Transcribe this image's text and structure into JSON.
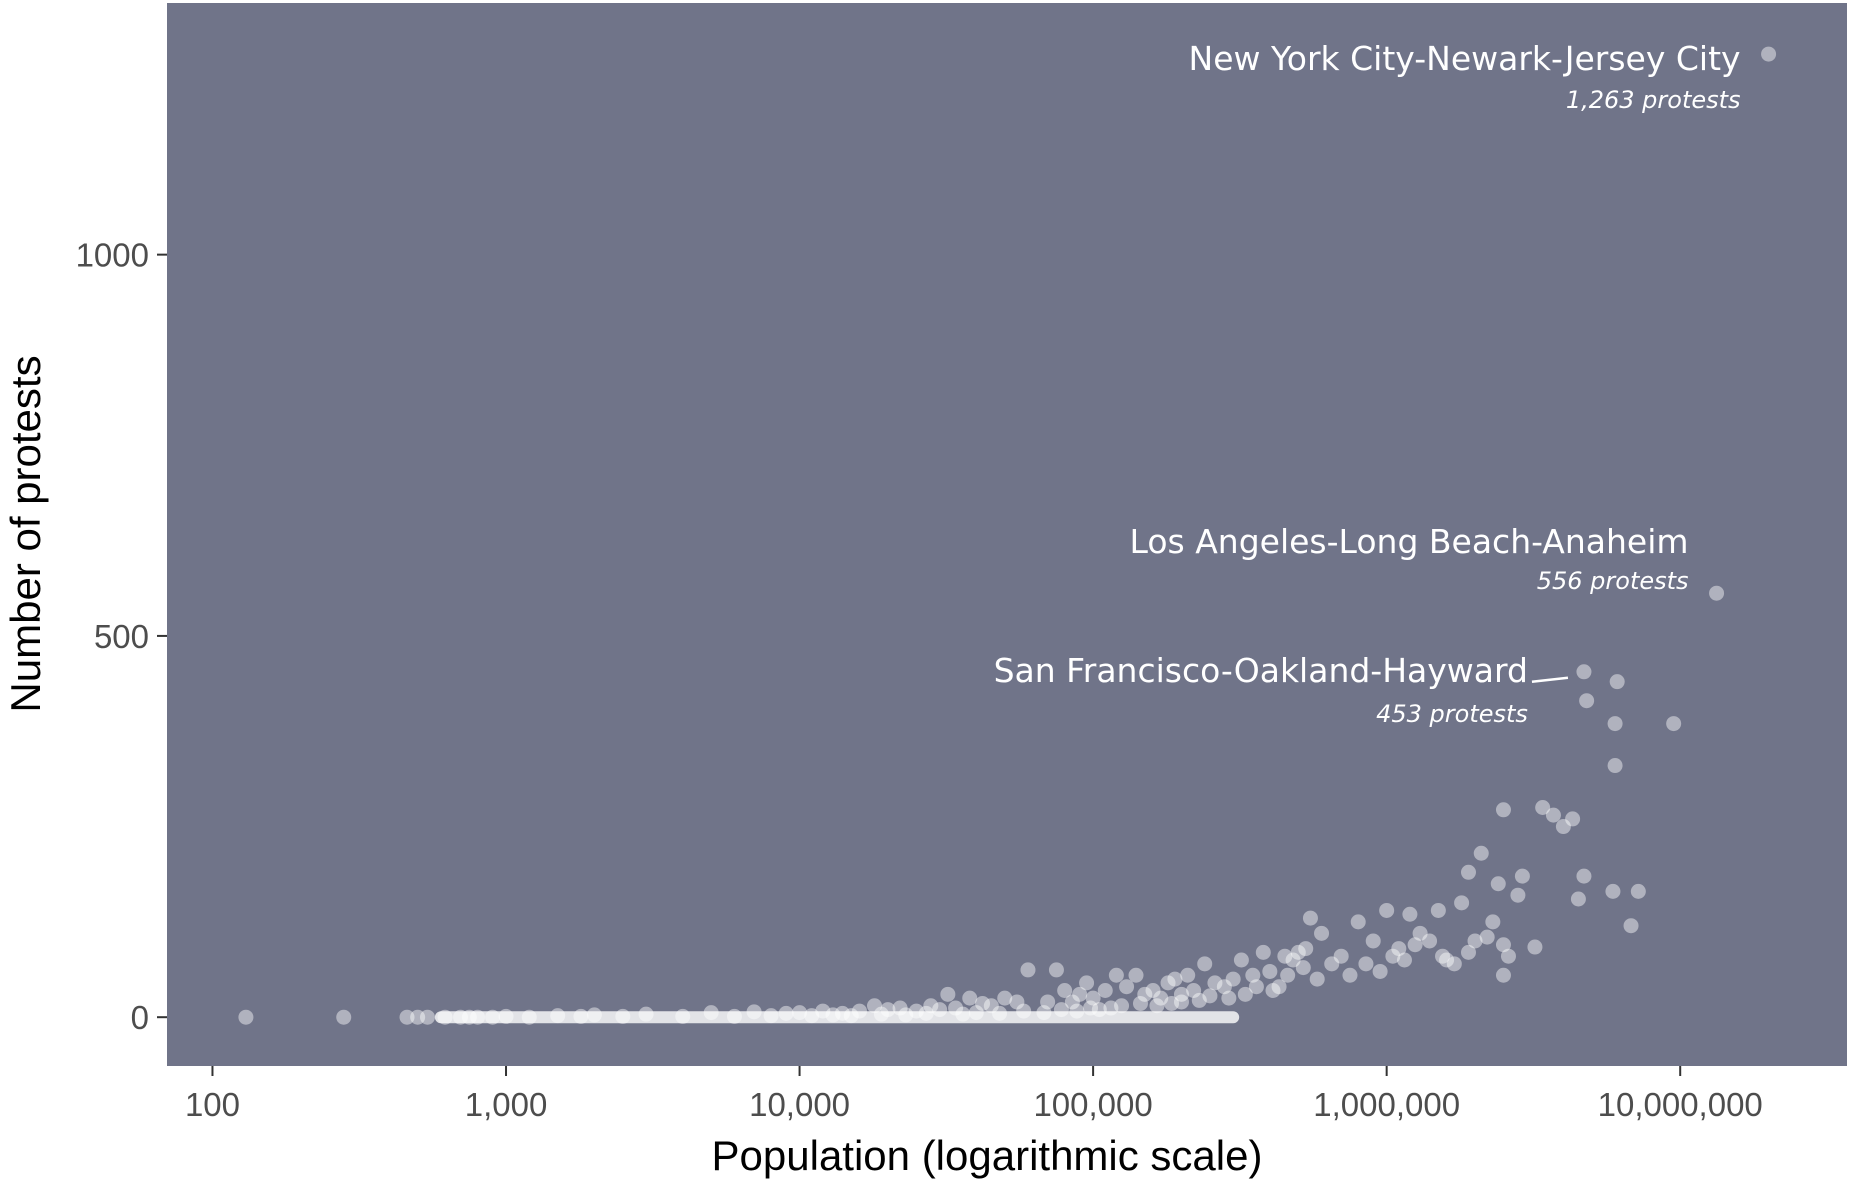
{
  "chart_data": {
    "type": "scatter",
    "title": "",
    "xlabel": "Population (logarithmic scale)",
    "ylabel": "Number of protests",
    "x_scale": "log",
    "xlim": [
      70,
      37000000
    ],
    "ylim": [
      -64,
      1330
    ],
    "x_ticks": [
      {
        "value": 100,
        "label": "100"
      },
      {
        "value": 1000,
        "label": "1,000"
      },
      {
        "value": 10000,
        "label": "10,000"
      },
      {
        "value": 100000,
        "label": "100,000"
      },
      {
        "value": 1000000,
        "label": "1,000,000"
      },
      {
        "value": 10000000,
        "label": "10,000,000"
      }
    ],
    "y_ticks": [
      {
        "value": 0,
        "label": "0"
      },
      {
        "value": 500,
        "label": "500"
      },
      {
        "value": 1000,
        "label": "1000"
      }
    ],
    "grid": false,
    "legend": "none",
    "colors": {
      "panel": "#707489",
      "point": "#ffffff",
      "text": "#ffffff",
      "tick_text": "#4d4d4d"
    },
    "annotations": [
      {
        "name": "New York City-Newark-Jersey City",
        "count": "1,263 protests",
        "x": 20000000,
        "y": 1263
      },
      {
        "name": "Los Angeles-Long Beach-Anaheim",
        "count": "556 protests",
        "x": 13300000,
        "y": 556
      },
      {
        "name": "San Francisco-Oakland-Hayward",
        "count": "453 protests",
        "x": 4700000,
        "y": 453
      }
    ],
    "points": [
      [
        20000000,
        1263
      ],
      [
        13300000,
        556
      ],
      [
        4700000,
        453
      ],
      [
        6100000,
        440
      ],
      [
        4800000,
        415
      ],
      [
        6000000,
        385
      ],
      [
        9500000,
        385
      ],
      [
        6000000,
        330
      ],
      [
        2500000,
        272
      ],
      [
        3400000,
        275
      ],
      [
        3700000,
        265
      ],
      [
        4000000,
        250
      ],
      [
        4300000,
        260
      ],
      [
        2100000,
        215
      ],
      [
        1900000,
        190
      ],
      [
        2400000,
        175
      ],
      [
        2900000,
        185
      ],
      [
        4700000,
        185
      ],
      [
        5900000,
        165
      ],
      [
        7200000,
        165
      ],
      [
        2800000,
        160
      ],
      [
        4500000,
        155
      ],
      [
        1800000,
        150
      ],
      [
        1500000,
        140
      ],
      [
        6800000,
        120
      ],
      [
        2000000,
        100
      ],
      [
        2500000,
        95
      ],
      [
        3200000,
        92
      ],
      [
        1000000,
        140
      ],
      [
        1200000,
        135
      ],
      [
        1300000,
        110
      ],
      [
        800000,
        125
      ],
      [
        1100000,
        90
      ],
      [
        1400000,
        100
      ],
      [
        1600000,
        75
      ],
      [
        1700000,
        70
      ],
      [
        900000,
        100
      ],
      [
        700000,
        80
      ],
      [
        600000,
        110
      ],
      [
        550000,
        130
      ],
      [
        530000,
        90
      ],
      [
        500000,
        85
      ],
      [
        480000,
        75
      ],
      [
        450000,
        80
      ],
      [
        400000,
        60
      ],
      [
        380000,
        85
      ],
      [
        350000,
        55
      ],
      [
        320000,
        75
      ],
      [
        300000,
        50
      ],
      [
        280000,
        40
      ],
      [
        260000,
        45
      ],
      [
        240000,
        70
      ],
      [
        220000,
        35
      ],
      [
        210000,
        55
      ],
      [
        200000,
        30
      ],
      [
        190000,
        50
      ],
      [
        180000,
        45
      ],
      [
        170000,
        25
      ],
      [
        160000,
        35
      ],
      [
        150000,
        30
      ],
      [
        140000,
        55
      ],
      [
        130000,
        40
      ],
      [
        120000,
        55
      ],
      [
        110000,
        35
      ],
      [
        100000,
        25
      ],
      [
        95000,
        45
      ],
      [
        90000,
        30
      ],
      [
        85000,
        20
      ],
      [
        80000,
        35
      ],
      [
        75000,
        62
      ],
      [
        70000,
        20
      ],
      [
        60000,
        62
      ],
      [
        55000,
        20
      ],
      [
        50000,
        25
      ],
      [
        45000,
        15
      ],
      [
        42000,
        18
      ],
      [
        38000,
        25
      ],
      [
        34000,
        12
      ],
      [
        32000,
        30
      ],
      [
        30000,
        10
      ],
      [
        28000,
        15
      ],
      [
        25000,
        8
      ],
      [
        22000,
        12
      ],
      [
        20000,
        10
      ],
      [
        18000,
        15
      ],
      [
        16000,
        8
      ],
      [
        14000,
        5
      ],
      [
        12000,
        8
      ],
      [
        10000,
        6
      ],
      [
        9000,
        5
      ],
      [
        7000,
        7
      ],
      [
        5000,
        6
      ],
      [
        3000,
        4
      ],
      [
        2000,
        3
      ],
      [
        1500,
        2
      ],
      [
        1000,
        1
      ],
      [
        800,
        0
      ],
      [
        700,
        0
      ],
      [
        620,
        0
      ],
      [
        540,
        0
      ],
      [
        500,
        0
      ],
      [
        460,
        0
      ],
      [
        280,
        0
      ],
      [
        130,
        0
      ],
      [
        2300000,
        125
      ],
      [
        2600000,
        80
      ],
      [
        2200000,
        105
      ],
      [
        1900000,
        85
      ],
      [
        2500000,
        55
      ],
      [
        1550000,
        80
      ],
      [
        1250000,
        95
      ],
      [
        1150000,
        75
      ],
      [
        1050000,
        80
      ],
      [
        950000,
        60
      ],
      [
        850000,
        70
      ],
      [
        750000,
        55
      ],
      [
        650000,
        70
      ],
      [
        580000,
        50
      ],
      [
        520000,
        65
      ],
      [
        460000,
        55
      ],
      [
        430000,
        40
      ],
      [
        410000,
        35
      ],
      [
        360000,
        40
      ],
      [
        330000,
        30
      ],
      [
        290000,
        25
      ],
      [
        250000,
        28
      ],
      [
        230000,
        22
      ],
      [
        200000,
        20
      ],
      [
        185000,
        18
      ],
      [
        165000,
        15
      ],
      [
        145000,
        18
      ],
      [
        125000,
        15
      ],
      [
        115000,
        12
      ],
      [
        105000,
        10
      ],
      [
        98000,
        12
      ],
      [
        88000,
        8
      ],
      [
        78000,
        10
      ],
      [
        68000,
        6
      ],
      [
        58000,
        8
      ],
      [
        48000,
        5
      ],
      [
        40000,
        6
      ],
      [
        36000,
        4
      ],
      [
        27000,
        5
      ],
      [
        23000,
        3
      ],
      [
        19000,
        4
      ],
      [
        15000,
        2
      ],
      [
        13000,
        3
      ],
      [
        11000,
        2
      ],
      [
        8000,
        2
      ],
      [
        6000,
        1
      ],
      [
        4000,
        1
      ],
      [
        2500,
        1
      ],
      [
        1800,
        1
      ],
      [
        1200,
        0
      ],
      [
        900,
        0
      ],
      [
        750,
        0
      ]
    ],
    "dense_band": {
      "x_min": 600,
      "x_max": 300000,
      "y": 0
    }
  }
}
